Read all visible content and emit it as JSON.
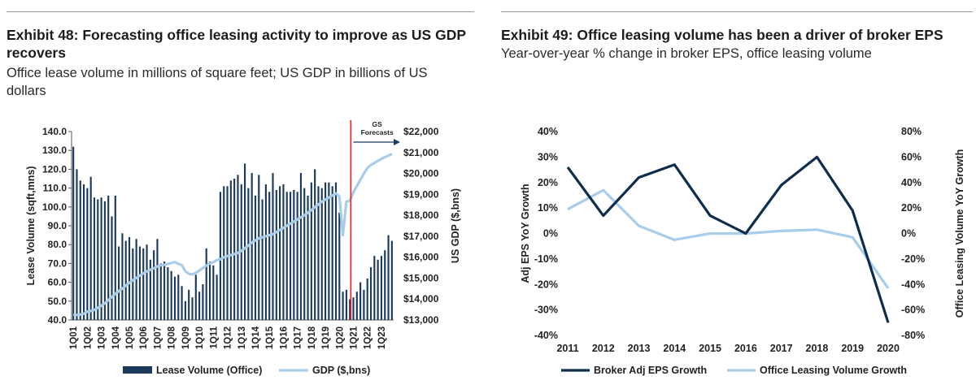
{
  "chart_data": [
    {
      "id": "exhibit48",
      "type": "bar",
      "title": "Exhibit 48: Forecasting office leasing activity to improve as US GDP recovers",
      "subtitle": "Office lease volume in millions of square feet; US GDP in billions of US dollars",
      "ylabel": "Lease Volume (sqft,mns)",
      "y2label": "US GDP ($,bns)",
      "ylim": [
        40,
        140
      ],
      "y2lim": [
        13000,
        22000
      ],
      "yticks": [
        "140.0",
        "130.0",
        "120.0",
        "110.0",
        "100.0",
        "90.0",
        "80.0",
        "70.0",
        "60.0",
        "50.0",
        "40.0"
      ],
      "y2ticks": [
        "$22,000",
        "$21,000",
        "$20,000",
        "$19,000",
        "$18,000",
        "$17,000",
        "$16,000",
        "$15,000",
        "$14,000",
        "$13,000"
      ],
      "xticks": [
        "1Q01",
        "1Q02",
        "1Q03",
        "1Q04",
        "1Q05",
        "1Q06",
        "1Q07",
        "1Q08",
        "1Q09",
        "1Q10",
        "1Q11",
        "1Q12",
        "1Q13",
        "1Q14",
        "1Q15",
        "1Q16",
        "1Q17",
        "1Q18",
        "1Q19",
        "1Q20",
        "1Q21",
        "1Q22",
        "1Q23"
      ],
      "annotation": "GS Forecasts",
      "forecast_start": "1Q21",
      "series": [
        {
          "name": "Lease Volume (Office)",
          "kind": "bar",
          "axis": "left",
          "color": "#1b3a5c",
          "values": [
            132,
            120,
            114,
            112,
            110,
            116,
            105,
            104,
            105,
            103,
            106,
            95,
            106,
            79,
            86,
            82,
            84,
            78,
            83,
            79,
            78,
            80,
            72,
            77,
            83,
            70,
            71,
            68,
            66,
            63,
            64,
            58,
            50,
            56,
            52,
            64,
            55,
            59,
            78,
            71,
            69,
            64,
            108,
            111,
            111,
            114,
            115,
            117,
            112,
            123,
            110,
            118,
            106,
            117,
            104,
            112,
            108,
            118,
            109,
            111,
            112,
            108,
            108,
            109,
            108,
            118,
            110,
            106,
            113,
            120,
            111,
            110,
            113,
            113,
            111,
            113,
            97,
            55,
            56,
            51,
            52,
            55,
            60,
            56,
            62,
            68,
            74,
            72,
            74,
            77,
            85,
            82
          ]
        },
        {
          "name": "GDP ($,bns)",
          "kind": "line",
          "axis": "right",
          "color": "#a9cde8",
          "values": [
            13250,
            13240,
            13260,
            13300,
            13400,
            13430,
            13480,
            13580,
            13680,
            13800,
            13950,
            14100,
            14250,
            14380,
            14500,
            14640,
            14780,
            14900,
            15010,
            15120,
            15230,
            15320,
            15400,
            15470,
            15560,
            15610,
            15640,
            15680,
            15720,
            15770,
            15680,
            15620,
            15330,
            15200,
            15180,
            15250,
            15360,
            15480,
            15600,
            15700,
            15760,
            15860,
            15900,
            16000,
            16050,
            16100,
            16150,
            16200,
            16300,
            16430,
            16550,
            16700,
            16800,
            16900,
            16950,
            17000,
            17050,
            17100,
            17200,
            17300,
            17400,
            17500,
            17600,
            17700,
            17800,
            17900,
            18000,
            18120,
            18250,
            18400,
            18520,
            18650,
            18750,
            18850,
            18950,
            19050,
            18900,
            17050,
            18650,
            18700,
            19100,
            19400,
            19700,
            20000,
            20250,
            20400,
            20500,
            20600,
            20700,
            20780,
            20850,
            20930
          ]
        }
      ],
      "legend": [
        "Lease Volume (Office)",
        "GDP ($,bns)"
      ],
      "legend_position": "bottom"
    },
    {
      "id": "exhibit49",
      "type": "line",
      "title": "Exhibit 49: Office leasing volume has been a driver of broker EPS",
      "subtitle": "Year-over-year % change in broker EPS, office leasing volume",
      "ylabel": "Adj EPS YoY Growth",
      "y2label": "Office Leasing Volume YoY Growth",
      "ylim": [
        -40,
        40
      ],
      "y2lim": [
        -80,
        80
      ],
      "yticks": [
        "40%",
        "30%",
        "20%",
        "10%",
        "0%",
        "-10%",
        "-20%",
        "-30%",
        "-40%"
      ],
      "y2ticks": [
        "80%",
        "60%",
        "40%",
        "20%",
        "0%",
        "-20%",
        "-40%",
        "-60%",
        "-80%"
      ],
      "x": [
        "2011",
        "2012",
        "2013",
        "2014",
        "2015",
        "2016",
        "2017",
        "2018",
        "2019",
        "2020"
      ],
      "series": [
        {
          "name": "Broker Adj EPS Growth",
          "axis": "left",
          "color": "#0e2c4c",
          "values": [
            26,
            7,
            22,
            27,
            7,
            0,
            19,
            30,
            9,
            -35
          ]
        },
        {
          "name": "Office Leasing Volume Growth",
          "axis": "right",
          "color": "#a9cde8",
          "values": [
            19,
            34,
            6,
            -5,
            0,
            0,
            2,
            3,
            -3,
            -43
          ]
        }
      ],
      "legend": [
        "Broker Adj EPS Growth",
        "Office Leasing Volume Growth"
      ],
      "legend_position": "bottom"
    }
  ],
  "left_panel": {
    "title_line1": "Exhibit 48: Forecasting office leasing activity to improve as US GDP",
    "title_line2": "recovers",
    "subtitle_line1": "Office lease volume in millions of square feet; US GDP in billions of US",
    "subtitle_line2": "dollars"
  },
  "right_panel": {
    "title_line1": "Exhibit 49: Office leasing volume has been a driver of broker EPS",
    "subtitle_line1": "Year-over-year % change in broker EPS, office leasing volume"
  }
}
